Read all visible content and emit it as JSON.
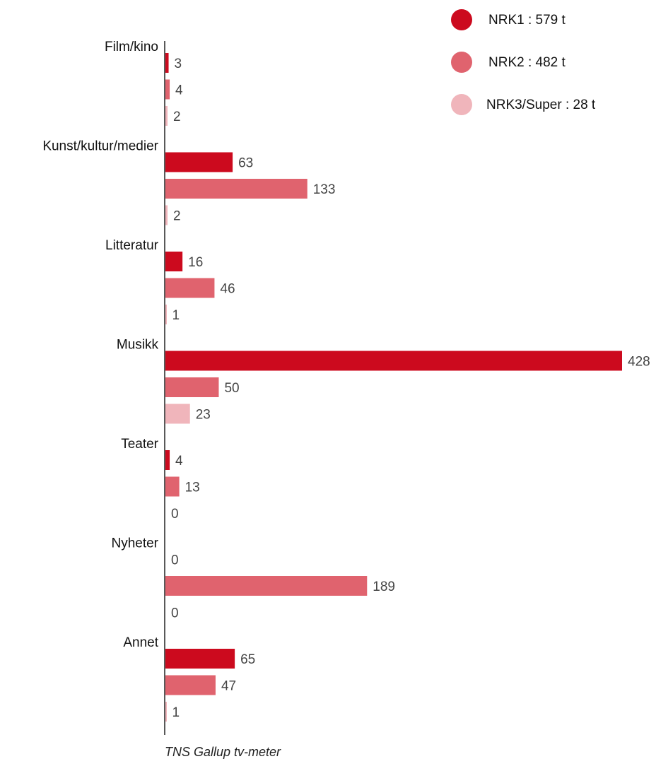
{
  "chart_data": {
    "type": "bar",
    "orientation": "horizontal",
    "categories": [
      "Film/kino",
      "Kunst/kultur/medier",
      "Litteratur",
      "Musikk",
      "Teater",
      "Nyheter",
      "Annet"
    ],
    "series": [
      {
        "name": "NRK1 : 579 t",
        "color": "#cc0a1e",
        "values": [
          3,
          63,
          16,
          428,
          4,
          0,
          65
        ]
      },
      {
        "name": "NRK2 : 482 t",
        "color": "#e0636e",
        "values": [
          4,
          133,
          46,
          50,
          13,
          189,
          47
        ]
      },
      {
        "name": "NRK3/Super : 28 t",
        "color": "#f0b5bb",
        "values": [
          2,
          2,
          1,
          23,
          0,
          0,
          1
        ]
      }
    ],
    "xlim": [
      0,
      428
    ],
    "grid": false,
    "legend_position": "top-right",
    "source": "TNS Gallup tv-meter"
  }
}
